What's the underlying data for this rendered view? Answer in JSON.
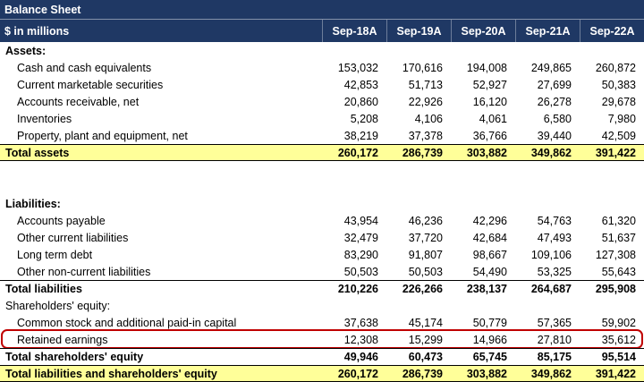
{
  "header": {
    "title": "Balance Sheet",
    "subtitle": "$ in millions",
    "columns": [
      "Sep-18A",
      "Sep-19A",
      "Sep-20A",
      "Sep-21A",
      "Sep-22A"
    ]
  },
  "colors": {
    "header_bg": "#1F3864",
    "total_highlight": "#FFFF99",
    "annotation_box": "#C00000"
  },
  "rows": [
    {
      "type": "section",
      "label": "Assets:",
      "values": []
    },
    {
      "type": "detail",
      "label": "Cash and cash equivalents",
      "values": [
        "153,032",
        "170,616",
        "194,008",
        "249,865",
        "260,872"
      ]
    },
    {
      "type": "detail",
      "label": "Current marketable securities",
      "values": [
        "42,853",
        "51,713",
        "52,927",
        "27,699",
        "50,383"
      ]
    },
    {
      "type": "detail",
      "label": "Accounts receivable, net",
      "values": [
        "20,860",
        "22,926",
        "16,120",
        "26,278",
        "29,678"
      ]
    },
    {
      "type": "detail",
      "label": "Inventories",
      "values": [
        "5,208",
        "4,106",
        "4,061",
        "6,580",
        "7,980"
      ]
    },
    {
      "type": "detail",
      "label": "Property, plant and equipment, net",
      "values": [
        "38,219",
        "37,378",
        "36,766",
        "39,440",
        "42,509"
      ]
    },
    {
      "type": "total-highlight",
      "label": "Total assets",
      "values": [
        "260,172",
        "286,739",
        "303,882",
        "349,862",
        "391,422"
      ]
    },
    {
      "type": "blank",
      "label": "",
      "values": []
    },
    {
      "type": "blank",
      "label": "",
      "values": []
    },
    {
      "type": "section",
      "label": "Liabilities:",
      "values": []
    },
    {
      "type": "detail",
      "label": "Accounts payable",
      "values": [
        "43,954",
        "46,236",
        "42,296",
        "54,763",
        "61,320"
      ]
    },
    {
      "type": "detail",
      "label": "Other current liabilities",
      "values": [
        "32,479",
        "37,720",
        "42,684",
        "47,493",
        "51,637"
      ]
    },
    {
      "type": "detail",
      "label": "Long term debt",
      "values": [
        "83,290",
        "91,807",
        "98,667",
        "109,106",
        "127,308"
      ]
    },
    {
      "type": "detail",
      "label": "Other non-current liabilities",
      "values": [
        "50,503",
        "50,503",
        "54,490",
        "53,325",
        "55,643"
      ]
    },
    {
      "type": "total",
      "label": "Total liabilities",
      "values": [
        "210,226",
        "226,266",
        "238,137",
        "264,687",
        "295,908"
      ]
    },
    {
      "type": "section-plain",
      "label": "Shareholders' equity:",
      "values": []
    },
    {
      "type": "detail",
      "label": "Common stock and additional paid-in capital",
      "values": [
        "37,638",
        "45,174",
        "50,779",
        "57,365",
        "59,902"
      ]
    },
    {
      "type": "detail",
      "annotated": true,
      "label": "Retained earnings",
      "values": [
        "12,308",
        "15,299",
        "14,966",
        "27,810",
        "35,612"
      ]
    },
    {
      "type": "total",
      "label": "Total shareholders' equity",
      "values": [
        "49,946",
        "60,473",
        "65,745",
        "85,175",
        "95,514"
      ]
    },
    {
      "type": "total-highlight",
      "label": "Total liabilities and shareholders' equity",
      "values": [
        "260,172",
        "286,739",
        "303,882",
        "349,862",
        "391,422"
      ]
    }
  ]
}
